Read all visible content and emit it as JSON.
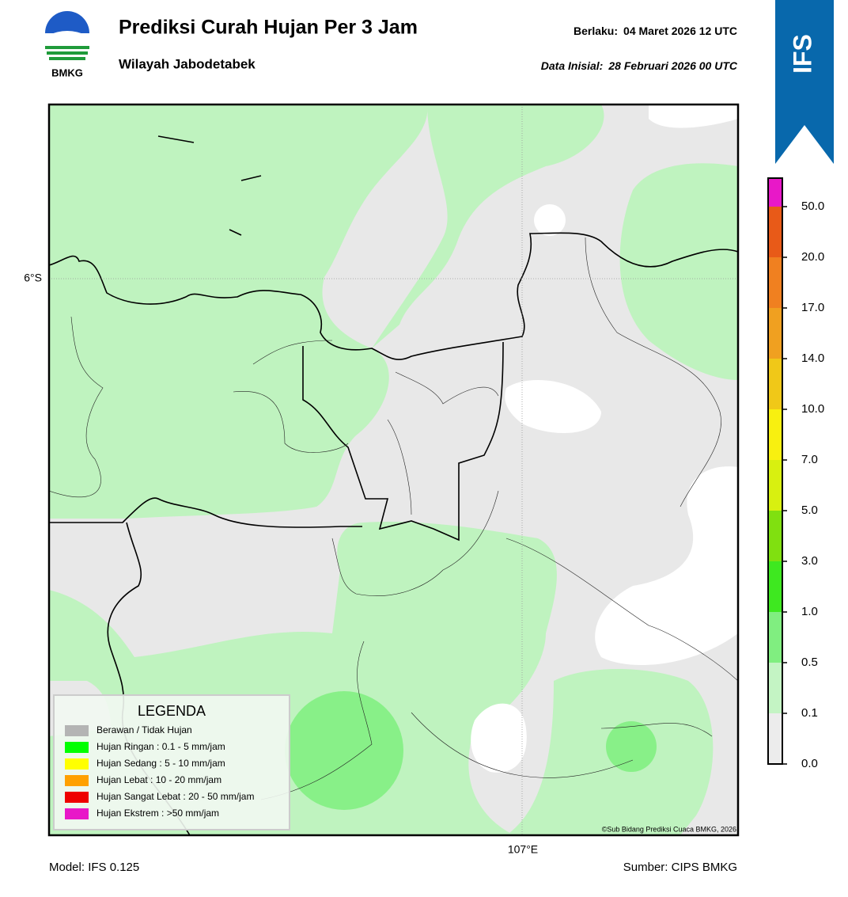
{
  "header": {
    "logo_text": "BMKG",
    "title": "Prediksi Curah Hujan Per 3 Jam",
    "subtitle": "Wilayah Jabodetabek",
    "valid_label": "Berlaku:",
    "valid_time": "04 Maret 2026 12 UTC",
    "init_label": "Data Inisial:",
    "init_time": "28 Februari 2026 00 UTC",
    "badge": "IFS"
  },
  "map": {
    "lat_label": "6°S",
    "lon_label": "107°E",
    "credit": "©Sub Bidang Prediksi Cuaca BMKG, 2026"
  },
  "legend": {
    "title": "LEGENDA",
    "items": [
      {
        "label": "Berawan / Tidak Hujan",
        "color": "#b4b4b4"
      },
      {
        "label": "Hujan Ringan : 0.1 - 5 mm/jam",
        "color": "#00ff00"
      },
      {
        "label": "Hujan Sedang : 5 - 10 mm/jam",
        "color": "#ffff00"
      },
      {
        "label": "Hujan Lebat : 10 - 20 mm/jam",
        "color": "#ffa000"
      },
      {
        "label": "Hujan Sangat Lebat : 20 - 50 mm/jam",
        "color": "#ee0000"
      },
      {
        "label": "Hujan Ekstrem : >50 mm/jam",
        "color": "#e818c8"
      }
    ]
  },
  "colorbar": {
    "ticks": [
      {
        "value": 0,
        "label": "0.0"
      },
      {
        "value": 0.1,
        "label": "0.1"
      },
      {
        "value": 0.5,
        "label": "0.5"
      },
      {
        "value": 1,
        "label": "1.0"
      },
      {
        "value": 3,
        "label": "3.0"
      },
      {
        "value": 5,
        "label": "5.0"
      },
      {
        "value": 7,
        "label": "7.0"
      },
      {
        "value": 10,
        "label": "10.0"
      },
      {
        "value": 14,
        "label": "14.0"
      },
      {
        "value": 17,
        "label": "17.0"
      },
      {
        "value": 20,
        "label": "20.0"
      },
      {
        "value": 50,
        "label": "50.0"
      }
    ],
    "colors": [
      "#ececec",
      "#c4f4c4",
      "#80ee80",
      "#3ee820",
      "#80e010",
      "#d8f010",
      "#f8f010",
      "#f0c818",
      "#f0a020",
      "#f08020",
      "#e85a18",
      "#e82018",
      "#e818c8"
    ]
  },
  "footer": {
    "model": "Model: IFS 0.125",
    "source": "Sumber: CIPS BMKG"
  }
}
